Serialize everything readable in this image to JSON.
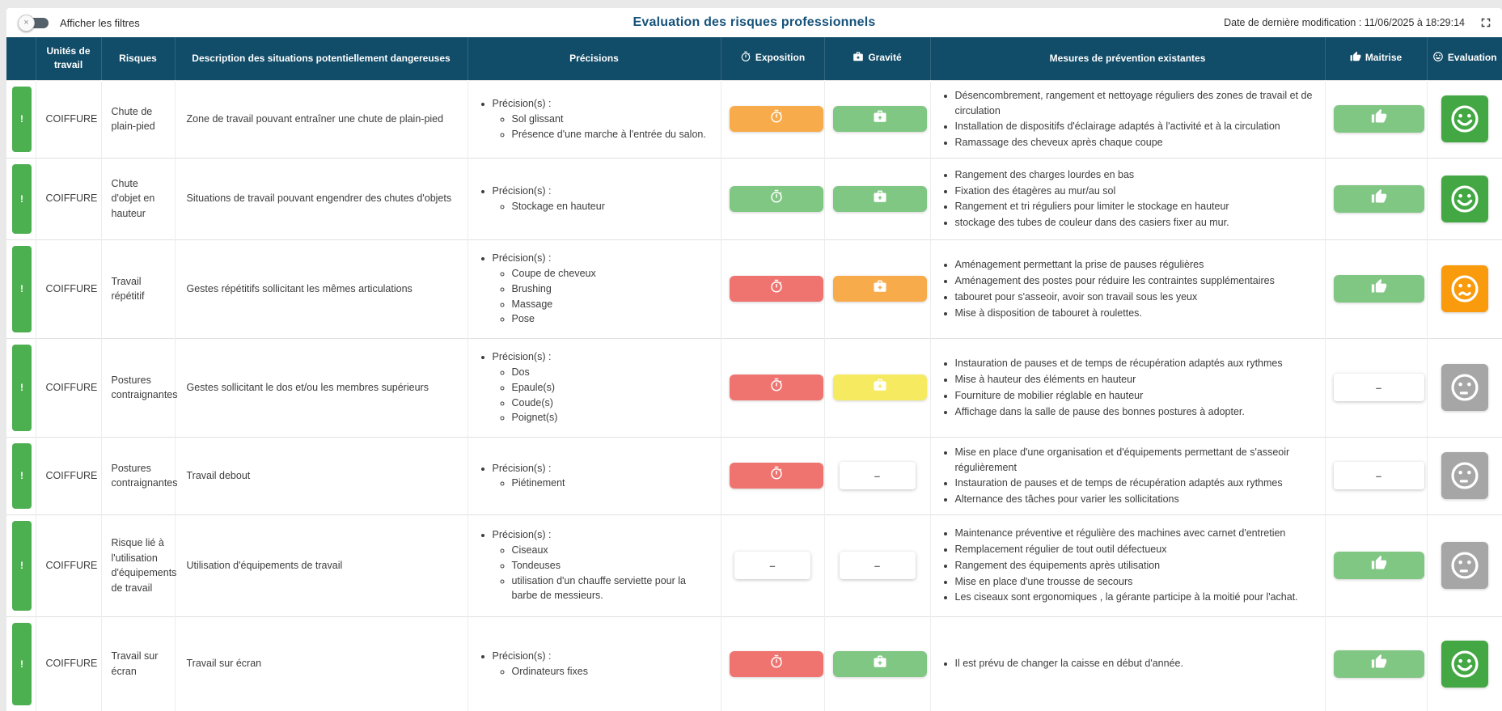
{
  "colors": {
    "header_bg": "#114C68",
    "title": "#15527A",
    "indicator_green": "#4CAF50",
    "green_badge": "#81C784",
    "orange_badge": "#F8AB4B",
    "red_badge": "#EF7470",
    "yellow_badge": "#F6EA61",
    "eval_green": "#43A843",
    "eval_orange": "#F99B0C",
    "eval_gray": "#A6A6A6"
  },
  "toolbar": {
    "filter_toggle_label": "Afficher les filtres",
    "toggle_state": "off",
    "toggle_icon": "×",
    "title": "Evaluation des risques professionnels",
    "last_modified": "Date de dernière modification : 11/06/2025 à 18:29:14"
  },
  "table": {
    "precisions_prefix": "Précision(s) :",
    "indicator_symbol": "!",
    "empty_value": "–",
    "columns": [
      {
        "key": "indicator",
        "label": ""
      },
      {
        "key": "unit",
        "label": "Unités de travail"
      },
      {
        "key": "risk",
        "label": "Risques"
      },
      {
        "key": "description",
        "label": "Description des situations potentiellement dangereuses"
      },
      {
        "key": "precisions",
        "label": "Précisions"
      },
      {
        "key": "exposition",
        "label": "Exposition",
        "icon": "timer-icon"
      },
      {
        "key": "gravite",
        "label": "Gravité",
        "icon": "first-aid-icon"
      },
      {
        "key": "mesures",
        "label": "Mesures de prévention existantes"
      },
      {
        "key": "maitrise",
        "label": "Maitrise",
        "icon": "thumb-up-icon"
      },
      {
        "key": "evaluation",
        "label": "Evaluation",
        "icon": "smiley-icon"
      }
    ],
    "rows": [
      {
        "indicator": "!",
        "unit": "COIFFURE",
        "risk": "Chute de plain-pied",
        "description": "Zone de travail pouvant entraîner une chute de plain-pied",
        "precisions": [
          "Sol glissant",
          "Présence d'une marche à l'entrée du salon."
        ],
        "exposition": "orange",
        "gravite": "green",
        "mesures": [
          "Désencombrement, rangement et nettoyage réguliers des zones de travail et de circulation",
          "Installation de dispositifs d'éclairage adaptés à l'activité et à la circulation",
          "Ramassage des cheveux après chaque coupe"
        ],
        "maitrise": "thumb",
        "evaluation": "happy-green"
      },
      {
        "indicator": "!",
        "unit": "COIFFURE",
        "risk": "Chute d'objet en hauteur",
        "description": "Situations de travail pouvant engendrer des chutes d'objets",
        "precisions": [
          "Stockage en hauteur"
        ],
        "exposition": "green",
        "gravite": "green",
        "mesures": [
          "Rangement des charges lourdes en bas",
          "Fixation des étagères au mur/au sol",
          "Rangement et tri réguliers pour limiter le stockage en hauteur",
          "stockage des tubes de couleur dans des casiers fixer au mur."
        ],
        "maitrise": "thumb",
        "evaluation": "happy-green"
      },
      {
        "indicator": "!",
        "unit": "COIFFURE",
        "risk": "Travail répétitif",
        "description": "Gestes répétitifs sollicitant les mêmes articulations",
        "precisions": [
          "Coupe de cheveux",
          "Brushing",
          "Massage",
          "Pose"
        ],
        "exposition": "red",
        "gravite": "orange",
        "mesures": [
          "Aménagement permettant la prise de pauses régulières",
          "Aménagement des postes pour réduire les contraintes supplémentaires",
          "tabouret pour s'asseoir, avoir son travail sous les yeux",
          "Mise à disposition de tabouret à roulettes."
        ],
        "maitrise": "thumb",
        "evaluation": "worried-orange"
      },
      {
        "indicator": "!",
        "unit": "COIFFURE",
        "risk": "Postures contraignantes",
        "description": "Gestes sollicitant le dos et/ou les membres supérieurs",
        "precisions": [
          "Dos",
          "Epaule(s)",
          "Coude(s)",
          "Poignet(s)"
        ],
        "exposition": "red",
        "gravite": "yellow",
        "mesures": [
          "Instauration de pauses et de temps de récupération adaptés aux rythmes",
          "Mise à hauteur des éléments en hauteur",
          "Fourniture de mobilier réglable en hauteur",
          "Affichage dans la salle de pause des bonnes postures à adopter."
        ],
        "maitrise": "none",
        "evaluation": "neutral-gray"
      },
      {
        "indicator": "!",
        "unit": "COIFFURE",
        "risk": "Postures contraignantes",
        "description": "Travail debout",
        "precisions": [
          "Piétinement"
        ],
        "exposition": "red",
        "gravite": "none",
        "mesures": [
          "Mise en place d'une organisation et d'équipements permettant de s'asseoir régulièrement",
          "Instauration de pauses et de temps de récupération adaptés aux rythmes",
          "Alternance des tâches pour varier les sollicitations"
        ],
        "maitrise": "none",
        "evaluation": "neutral-gray"
      },
      {
        "indicator": "!",
        "unit": "COIFFURE",
        "risk": "Risque lié à l'utilisation d'équipements de travail",
        "description": "Utilisation d'équipements de travail",
        "precisions": [
          "Ciseaux",
          "Tondeuses",
          "utilisation d'un chauffe serviette pour la barbe de messieurs."
        ],
        "exposition": "none",
        "gravite": "none",
        "mesures": [
          "Maintenance préventive et régulière des machines avec carnet d'entretien",
          "Remplacement régulier de tout outil défectueux",
          "Rangement des équipements après utilisation",
          "Mise en place d'une trousse de secours",
          "Les ciseaux sont ergonomiques , la gérante participe à la moitié pour l'achat."
        ],
        "maitrise": "thumb",
        "evaluation": "neutral-gray"
      },
      {
        "indicator": "!",
        "unit": "COIFFURE",
        "risk": "Travail sur écran",
        "description": "Travail sur écran",
        "precisions": [
          "Ordinateurs fixes"
        ],
        "exposition": "red",
        "gravite": "green",
        "mesures": [
          "Il est prévu de changer la caisse en début d'année."
        ],
        "maitrise": "thumb",
        "evaluation": "happy-green"
      }
    ]
  }
}
